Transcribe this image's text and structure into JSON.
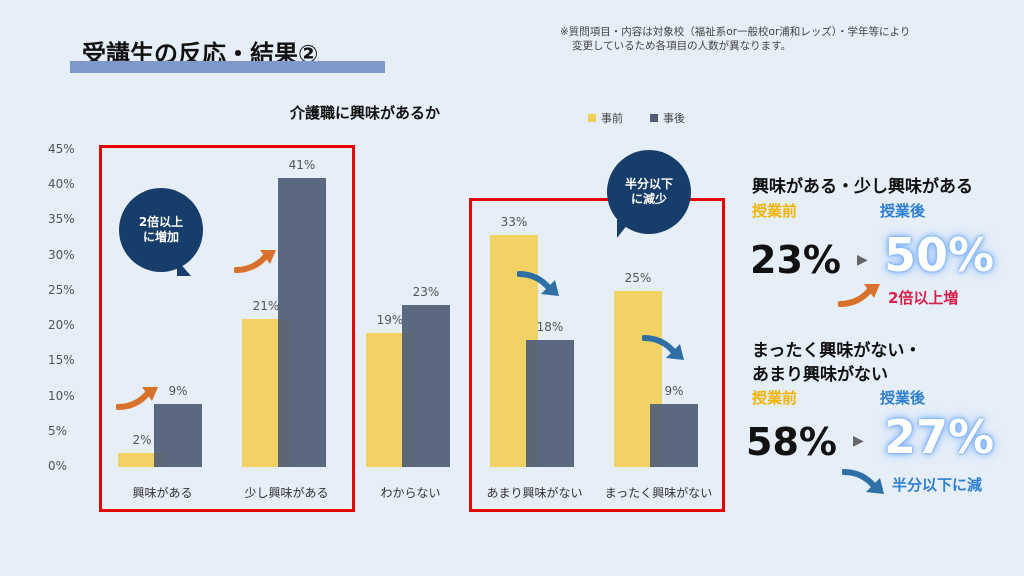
{
  "header": {
    "title": "受講生の反応・結果②",
    "note_line1": "※質問項目・内容は対象校（福祉系or一般校or浦和レッズ）・学年等により",
    "note_line2": "変更しているため各項目の人数が異なります。"
  },
  "chart_data": {
    "type": "bar",
    "title": "介護職に興味があるか",
    "categories": [
      "興味がある",
      "少し興味がある",
      "わからない",
      "あまり興味がない",
      "まったく興味がない"
    ],
    "series": [
      {
        "name": "事前",
        "values": [
          2,
          21,
          19,
          33,
          25
        ],
        "color": "#f3cf58"
      },
      {
        "name": "事後",
        "values": [
          9,
          41,
          23,
          18,
          9
        ],
        "color": "#4e5d75"
      }
    ],
    "ylim": [
      0,
      45
    ],
    "yticks": [
      "0%",
      "5%",
      "10%",
      "15%",
      "20%",
      "25%",
      "30%",
      "35%",
      "40%",
      "45%"
    ],
    "value_suffix": "%",
    "legend_position": "top-right",
    "grid": false
  },
  "callouts": {
    "left_bubble": {
      "line1": "2倍以上",
      "line2": "に増加"
    },
    "right_bubble": {
      "line1": "半分以下",
      "line2": "に減少"
    }
  },
  "summary": {
    "interest": {
      "heading": "興味がある・少し興味がある",
      "before_label": "授業前",
      "after_label": "授業後",
      "before_value": "23%",
      "after_value": "50%",
      "result": "2倍以上増",
      "result_color": "#d4204a"
    },
    "no_interest": {
      "heading_line1": "まったく興味がない・",
      "heading_line2": "あまり興味がない",
      "before_label": "授業前",
      "after_label": "授業後",
      "before_value": "58%",
      "after_value": "27%",
      "result": "半分以下に減",
      "result_color": "#2e7fd1"
    }
  }
}
